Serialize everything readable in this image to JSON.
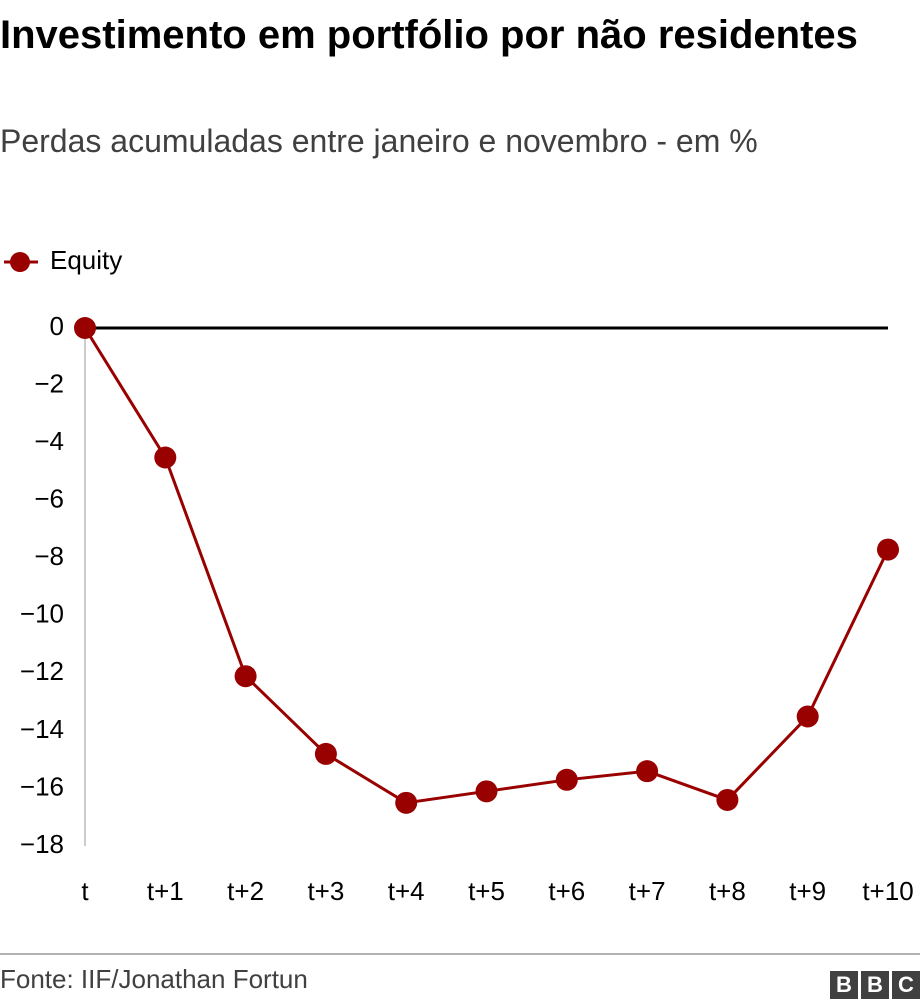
{
  "chart_data": {
    "type": "line",
    "title": "Investimento em portfólio por não residentes",
    "subtitle": "Perdas acumuladas entre janeiro e novembro - em %",
    "categories": [
      "t",
      "t+1",
      "t+2",
      "t+3",
      "t+4",
      "t+5",
      "t+6",
      "t+7",
      "t+8",
      "t+9",
      "t+10"
    ],
    "series": [
      {
        "name": "Equity",
        "color": "#990000",
        "values": [
          0,
          -4.5,
          -12.1,
          -14.8,
          -16.5,
          -16.1,
          -15.7,
          -15.4,
          -16.4,
          -13.5,
          -7.7
        ]
      }
    ],
    "ylim": [
      -18,
      0
    ],
    "yticks": [
      0,
      {
        "value": -2,
        "label": "−2"
      },
      {
        "value": -4,
        "label": "−4"
      },
      {
        "value": -6,
        "label": "−6"
      },
      {
        "value": -8,
        "label": "−8"
      },
      {
        "value": -10,
        "label": "−10"
      },
      {
        "value": -12,
        "label": "−12"
      },
      {
        "value": -14,
        "label": "−14"
      },
      {
        "value": -16,
        "label": "−16"
      },
      {
        "value": -18,
        "label": "−18"
      }
    ],
    "legend": "top-left",
    "source": "Fonte: IIF/Jonathan Fortun",
    "logo": [
      "B",
      "B",
      "C"
    ]
  }
}
